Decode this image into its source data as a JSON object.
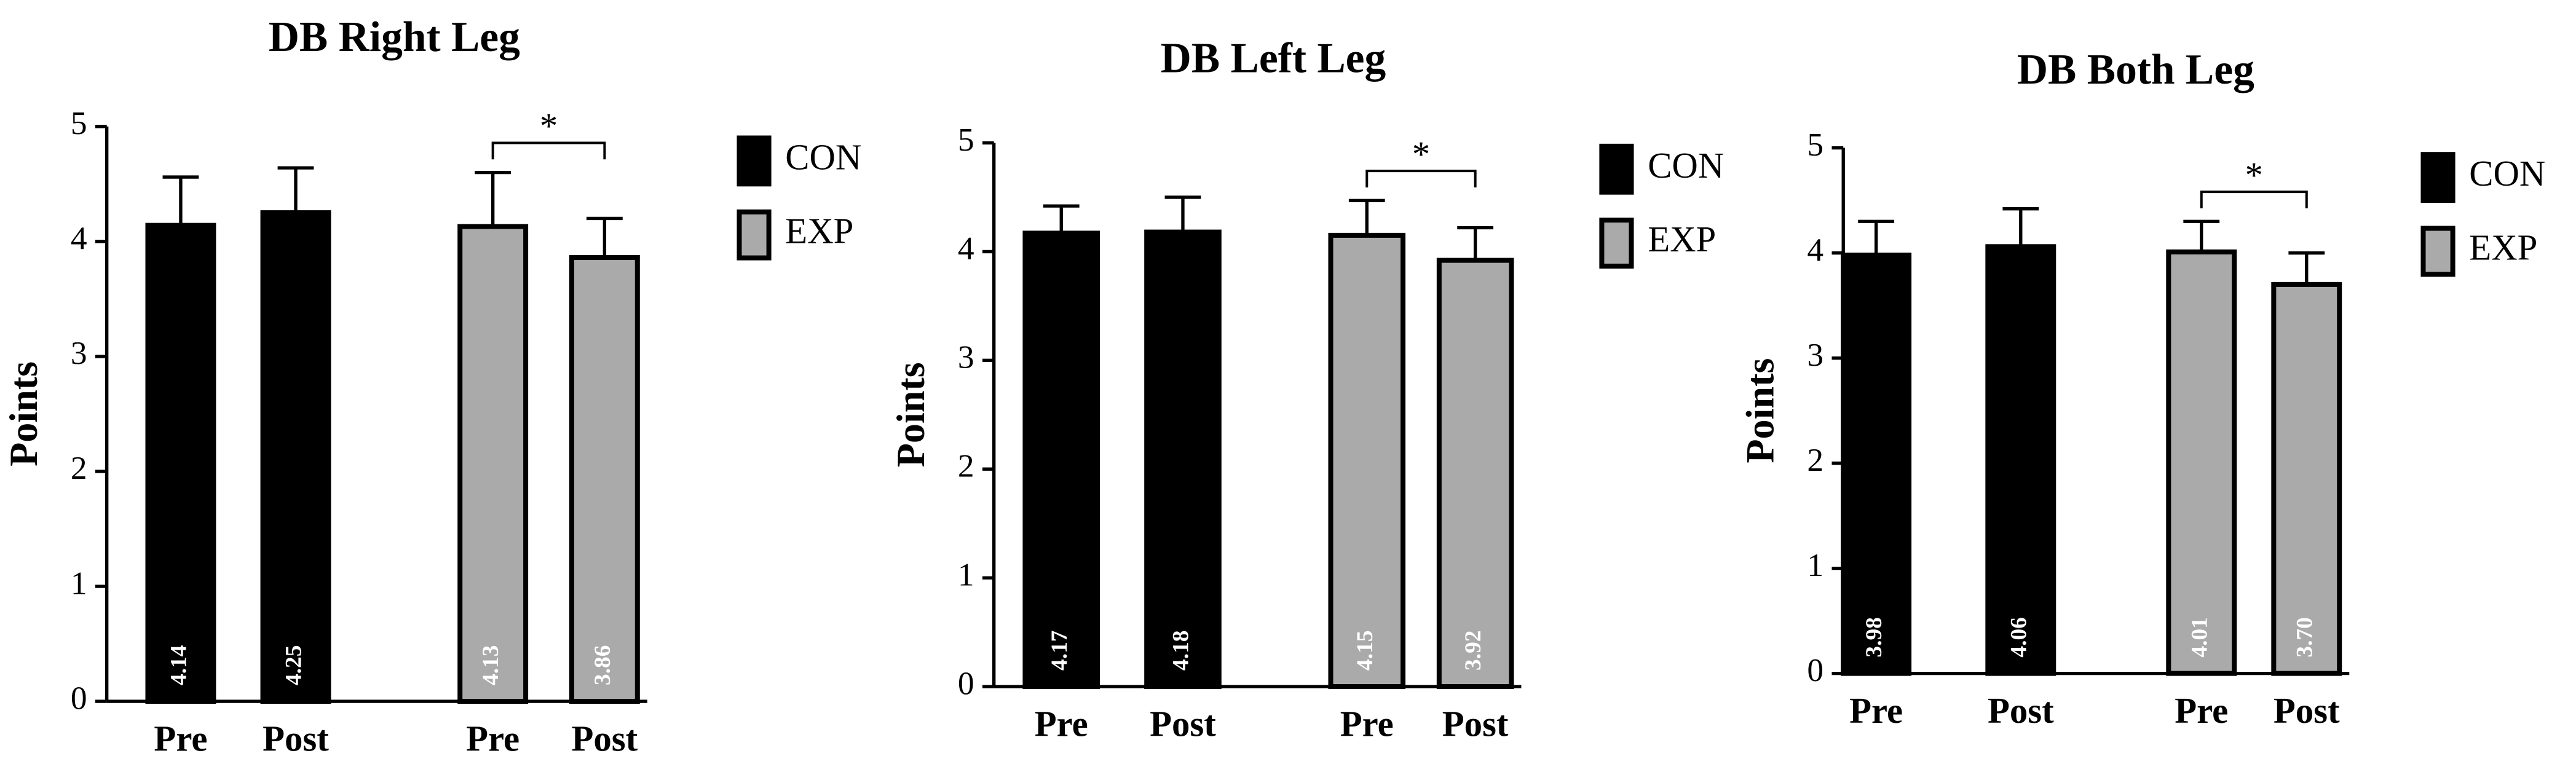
{
  "chart_data": [
    {
      "type": "bar",
      "title": "DB Right Leg",
      "y_label": "Points",
      "categories": [
        "Pre",
        "Post",
        "Pre",
        "Post"
      ],
      "series": [
        {
          "name": "CON",
          "color": "#000000",
          "values": [
            4.14,
            4.25,
            null,
            null
          ],
          "errors": [
            0.42,
            0.39,
            null,
            null
          ],
          "value_labels": [
            "4.14",
            "4.25",
            null,
            null
          ]
        },
        {
          "name": "EXP",
          "color": "#aaaaaa",
          "values": [
            null,
            null,
            4.13,
            3.86
          ],
          "errors": [
            null,
            null,
            0.47,
            0.34
          ],
          "value_labels": [
            null,
            null,
            "4.13",
            "3.86"
          ]
        }
      ],
      "annotation": "*",
      "ylim": [
        0,
        5
      ],
      "yticks": [
        0,
        1,
        2,
        3,
        4,
        5
      ]
    },
    {
      "type": "bar",
      "title": "DB Left Leg",
      "y_label": "Points",
      "categories": [
        "Pre",
        "Post",
        "Pre",
        "Post"
      ],
      "series": [
        {
          "name": "CON",
          "color": "#000000",
          "values": [
            4.17,
            4.18,
            null,
            null
          ],
          "errors": [
            0.25,
            0.32,
            null,
            null
          ],
          "value_labels": [
            "4.17",
            "4.18",
            null,
            null
          ]
        },
        {
          "name": "EXP",
          "color": "#aaaaaa",
          "values": [
            null,
            null,
            4.15,
            3.92
          ],
          "errors": [
            null,
            null,
            0.32,
            0.3
          ],
          "value_labels": [
            null,
            null,
            "4.15",
            "3.92"
          ]
        }
      ],
      "annotation": "*",
      "ylim": [
        0,
        5
      ],
      "yticks": [
        0,
        1,
        2,
        3,
        4,
        5
      ]
    },
    {
      "type": "bar",
      "title": "DB Both Leg",
      "y_label": "Points",
      "categories": [
        "Pre",
        "Post",
        "Pre",
        "Post"
      ],
      "series": [
        {
          "name": "CON",
          "color": "#000000",
          "values": [
            3.98,
            4.06,
            null,
            null
          ],
          "errors": [
            0.32,
            0.36,
            null,
            null
          ],
          "value_labels": [
            "3.98",
            "4.06",
            null,
            null
          ]
        },
        {
          "name": "EXP",
          "color": "#aaaaaa",
          "values": [
            null,
            null,
            4.01,
            3.7
          ],
          "errors": [
            null,
            null,
            0.29,
            0.3
          ],
          "value_labels": [
            null,
            null,
            "4.01",
            "3.70"
          ]
        }
      ],
      "annotation": "*",
      "ylim": [
        0,
        5
      ],
      "yticks": [
        0,
        1,
        2,
        3,
        4,
        5
      ]
    }
  ]
}
